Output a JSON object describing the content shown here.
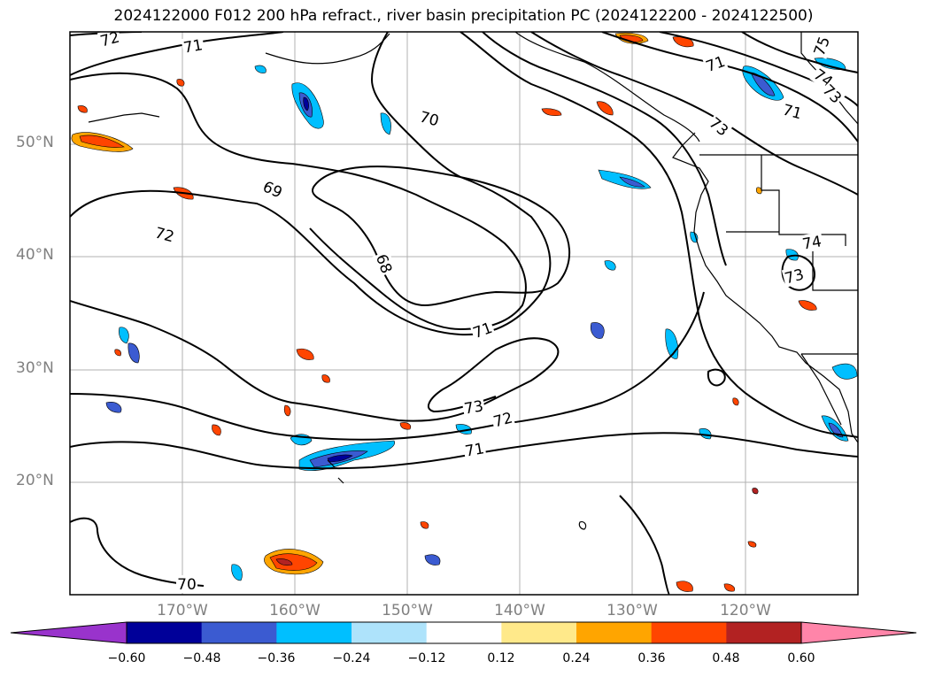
{
  "title": "2024122000 F012 200 hPa refract., river basin precipitation PC (2024122200 - 2024122500)",
  "map": {
    "lon_range": [
      -180,
      -110
    ],
    "lat_range": [
      10,
      60
    ],
    "lat_labels": [
      "50°N",
      "40°N",
      "30°N",
      "20°N"
    ],
    "lon_labels": [
      "170°W",
      "160°W",
      "150°W",
      "140°W",
      "130°W",
      "120°W"
    ],
    "contour_labels": [
      "72",
      "71",
      "70",
      "69",
      "68",
      "72",
      "71",
      "73",
      "72",
      "71",
      "75",
      "71",
      "74",
      "73",
      "71",
      "73",
      "74",
      "73",
      "70"
    ]
  },
  "colorbar": {
    "colors": [
      "#9933cc",
      "#000099",
      "#3b5bd1",
      "#00bfff",
      "#aee3fb",
      "#ffffff",
      "#ffe98a",
      "#ffa500",
      "#ff4500",
      "#b22222",
      "#ff85a9"
    ],
    "ticks": [
      "−0.60",
      "−0.48",
      "−0.36",
      "−0.24",
      "−0.12",
      "0.12",
      "0.24",
      "0.36",
      "0.48",
      "0.60"
    ]
  }
}
